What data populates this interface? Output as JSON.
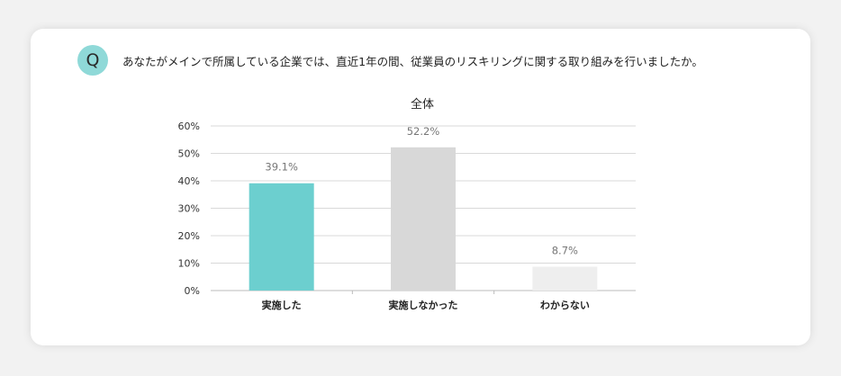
{
  "question": {
    "badge": "Q",
    "text": "あなたがメインで所属している企業では、直近1年の間、従業員のリスキリングに関する取り組みを行いましたか。"
  },
  "chart_data": {
    "type": "bar",
    "title": "全体",
    "categories": [
      "実施した",
      "実施しなかった",
      "わからない"
    ],
    "values": [
      39.1,
      52.2,
      8.7
    ],
    "value_labels": [
      "39.1%",
      "52.2%",
      "8.7%"
    ],
    "colors": [
      "#6ccfcf",
      "#d8d8d8",
      "#eeeeee"
    ],
    "ylim": [
      0,
      60
    ],
    "yticks": [
      0,
      10,
      20,
      30,
      40,
      50,
      60
    ],
    "ytick_labels": [
      "0%",
      "10%",
      "20%",
      "30%",
      "40%",
      "50%",
      "60%"
    ],
    "grid": true,
    "xlabel": "",
    "ylabel": ""
  }
}
